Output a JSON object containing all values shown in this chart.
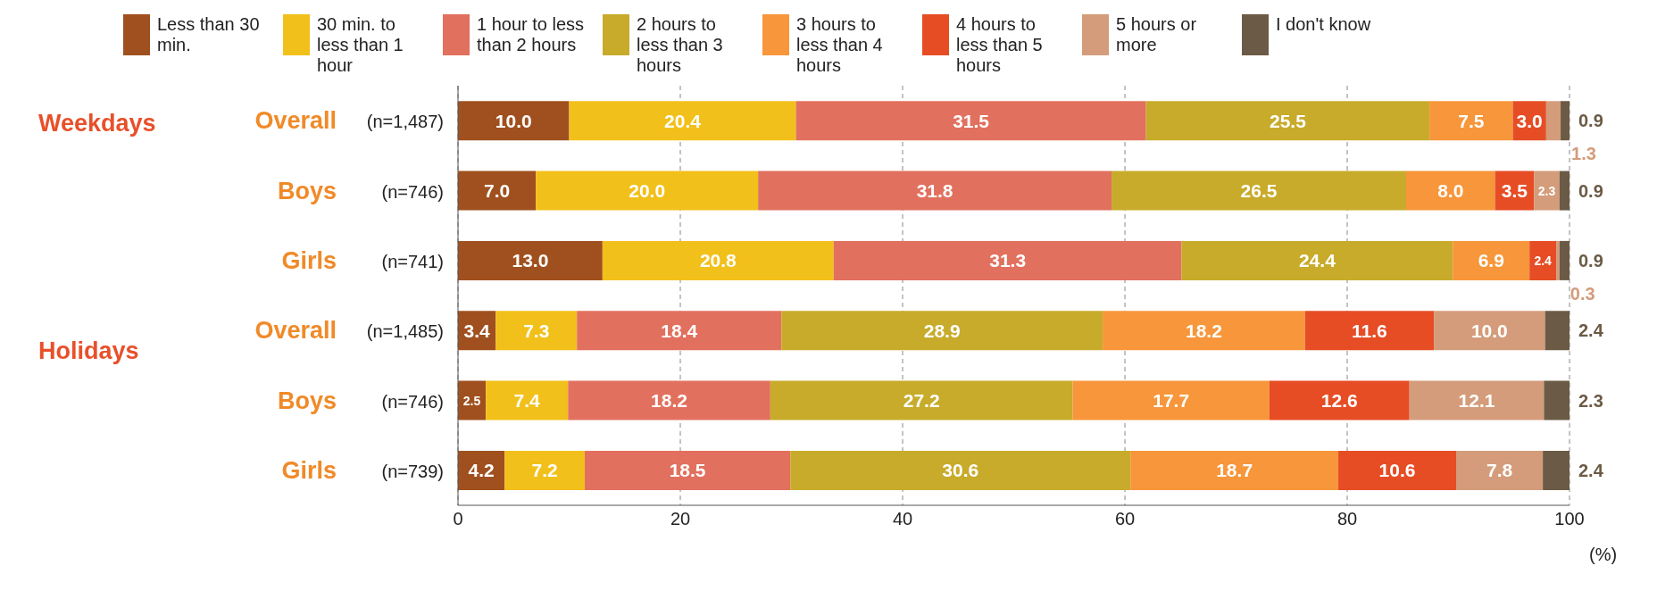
{
  "chart_data": {
    "type": "bar",
    "orientation": "horizontal",
    "stacked": true,
    "categories": [
      "Overall (n=1,487)",
      "Boys (n=746)",
      "Girls (n=741)",
      "Overall (n=1,485)",
      "Boys (n=746)",
      "Girls (n=739)"
    ],
    "annotations": [
      "Weekdays",
      "Holidays"
    ],
    "series": [
      {
        "name": "Less than 30 min.",
        "color": "#a0501e",
        "values": [
          10.0,
          7.0,
          13.0,
          3.4,
          2.5,
          4.2
        ],
        "value_labels": [
          "10.0",
          "7.0",
          "13.0",
          "3.4",
          "2.5",
          "4.2"
        ]
      },
      {
        "name": "30 min. to less than 1 hour",
        "color": "#f2c01a",
        "values": [
          20.4,
          20.0,
          20.8,
          7.3,
          7.4,
          7.2
        ],
        "value_labels": [
          "20.4",
          "20.0",
          "20.8",
          "7.3",
          "7.4",
          "7.2"
        ]
      },
      {
        "name": "1 hour to less than 2 hours",
        "color": "#e2705e",
        "values": [
          31.5,
          31.8,
          31.3,
          18.4,
          18.2,
          18.5
        ],
        "value_labels": [
          "31.5",
          "31.8",
          "31.3",
          "18.4",
          "18.2",
          "18.5"
        ]
      },
      {
        "name": "2 hours to less than 3 hours",
        "color": "#c8ab2a",
        "values": [
          25.5,
          26.5,
          24.4,
          28.9,
          27.2,
          30.6
        ],
        "value_labels": [
          "25.5",
          "26.5",
          "24.4",
          "28.9",
          "27.2",
          "30.6"
        ]
      },
      {
        "name": "3 hours to less than 4 hours",
        "color": "#f7963a",
        "values": [
          7.5,
          8.0,
          6.9,
          18.2,
          17.7,
          18.7
        ],
        "value_labels": [
          "7.5",
          "8.0",
          "6.9",
          "18.2",
          "17.7",
          "18.7"
        ]
      },
      {
        "name": "4 hours to less than 5 hours",
        "color": "#e64d25",
        "values": [
          3.0,
          3.5,
          2.4,
          11.6,
          12.6,
          10.6
        ],
        "value_labels": [
          "3.0",
          "3.5",
          "2.4",
          "11.6",
          "12.6",
          "10.6"
        ]
      },
      {
        "name": "5 hours or more",
        "color": "#d49c7a",
        "values": [
          1.3,
          2.3,
          0.3,
          10.0,
          12.1,
          7.8
        ],
        "value_labels": [
          "1.3",
          "2.3",
          "0.3",
          "10.0",
          "12.1",
          "7.8"
        ]
      },
      {
        "name": "I don't know",
        "color": "#6b5a45",
        "values": [
          0.9,
          0.9,
          0.9,
          2.4,
          2.3,
          2.4
        ],
        "value_labels": [
          "0.9",
          "0.9",
          "0.9",
          "2.4",
          "2.3",
          "2.4"
        ]
      }
    ],
    "xlim": [
      0,
      100
    ],
    "xticks": [
      0,
      20,
      40,
      60,
      80,
      100
    ],
    "xlabel": "(%)",
    "grid": "x",
    "legend": "top"
  }
}
